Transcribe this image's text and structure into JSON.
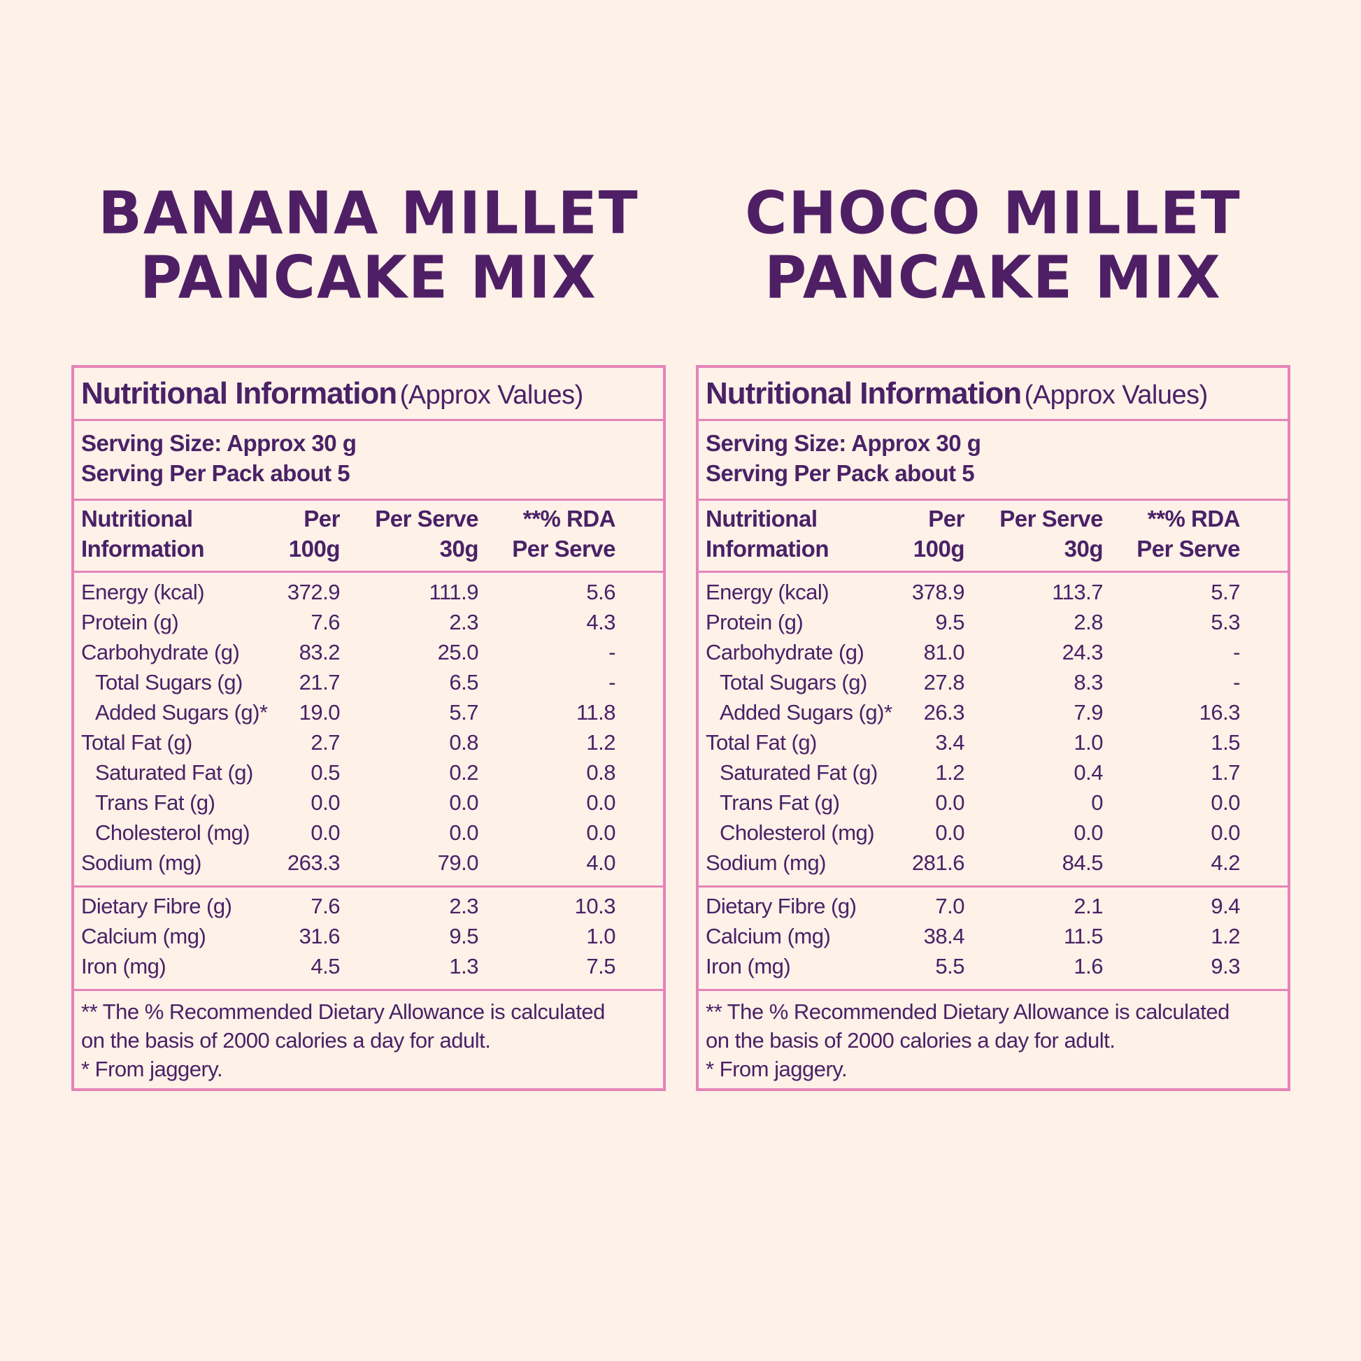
{
  "products": [
    {
      "title_line1": "BANANA MILLET",
      "title_line2": "PANCAKE MIX",
      "header_strong": "Nutritional Information",
      "header_light": "(Approx Values)",
      "serving_size": "Serving Size: Approx 30 g",
      "servings_per_pack": "Serving Per Pack about 5",
      "columns": {
        "name_line1": "Nutritional",
        "name_line2": "Information",
        "per100_line1": "Per",
        "per100_line2": "100g",
        "serve_line1": "Per Serve",
        "serve_line2": "30g",
        "rda_line1": "**% RDA",
        "rda_line2": "Per Serve"
      },
      "rows": [
        {
          "name": "Energy (kcal)",
          "per100": "372.9",
          "serve": "111.9",
          "rda": "5.6"
        },
        {
          "name": "Protein (g)",
          "per100": "7.6",
          "serve": "2.3",
          "rda": "4.3"
        },
        {
          "name": "Carbohydrate (g)",
          "per100": "83.2",
          "serve": "25.0",
          "rda": "-"
        },
        {
          "name": "Total Sugars (g)",
          "per100": "21.7",
          "serve": "6.5",
          "rda": "-"
        },
        {
          "name": "Added  Sugars (g)*",
          "per100": "19.0",
          "serve": "5.7",
          "rda": "11.8"
        },
        {
          "name": "Total Fat (g)",
          "per100": "2.7",
          "serve": "0.8",
          "rda": "1.2"
        },
        {
          "name": "Saturated Fat (g)",
          "per100": "0.5",
          "serve": "0.2",
          "rda": "0.8"
        },
        {
          "name": "Trans Fat (g)",
          "per100": "0.0",
          "serve": "0.0",
          "rda": "0.0"
        },
        {
          "name": "Cholesterol (mg)",
          "per100": "0.0",
          "serve": "0.0",
          "rda": "0.0"
        },
        {
          "name": "Sodium (mg)",
          "per100": "263.3",
          "serve": "79.0",
          "rda": "4.0"
        },
        {
          "name": "Dietary Fibre (g)",
          "per100": "7.6",
          "serve": "2.3",
          "rda": "10.3"
        },
        {
          "name": "Calcium (mg)",
          "per100": "31.6",
          "serve": "9.5",
          "rda": "1.0"
        },
        {
          "name": "Iron (mg)",
          "per100": "4.5",
          "serve": "1.3",
          "rda": "7.5"
        }
      ],
      "footnote_line1": "** The % Recommended Dietary Allowance is calculated",
      "footnote_line2": "on the basis of 2000 calories a day for adult.",
      "footnote_line3": "* From jaggery."
    },
    {
      "title_line1": "CHOCO MILLET",
      "title_line2": "PANCAKE MIX",
      "header_strong": "Nutritional Information",
      "header_light": "(Approx Values)",
      "serving_size": "Serving Size: Approx 30 g",
      "servings_per_pack": "Serving Per Pack about 5",
      "columns": {
        "name_line1": "Nutritional",
        "name_line2": "Information",
        "per100_line1": "Per",
        "per100_line2": "100g",
        "serve_line1": "Per Serve",
        "serve_line2": "30g",
        "rda_line1": "**% RDA",
        "rda_line2": "Per Serve"
      },
      "rows": [
        {
          "name": "Energy (kcal)",
          "per100": "378.9",
          "serve": "113.7",
          "rda": "5.7"
        },
        {
          "name": "Protein (g)",
          "per100": "9.5",
          "serve": "2.8",
          "rda": "5.3"
        },
        {
          "name": "Carbohydrate (g)",
          "per100": "81.0",
          "serve": "24.3",
          "rda": "-"
        },
        {
          "name": "Total Sugars (g)",
          "per100": "27.8",
          "serve": "8.3",
          "rda": "-"
        },
        {
          "name": "Added  Sugars (g)*",
          "per100": "26.3",
          "serve": "7.9",
          "rda": "16.3"
        },
        {
          "name": "Total Fat (g)",
          "per100": "3.4",
          "serve": "1.0",
          "rda": "1.5"
        },
        {
          "name": "Saturated Fat (g)",
          "per100": "1.2",
          "serve": "0.4",
          "rda": "1.7"
        },
        {
          "name": "Trans Fat (g)",
          "per100": "0.0",
          "serve": "0",
          "rda": "0.0"
        },
        {
          "name": "Cholesterol (mg)",
          "per100": "0.0",
          "serve": "0.0",
          "rda": "0.0"
        },
        {
          "name": "Sodium (mg)",
          "per100": "281.6",
          "serve": "84.5",
          "rda": "4.2"
        },
        {
          "name": "Dietary Fibre (g)",
          "per100": "7.0",
          "serve": "2.1",
          "rda": "9.4"
        },
        {
          "name": "Calcium (mg)",
          "per100": "38.4",
          "serve": "11.5",
          "rda": "1.2"
        },
        {
          "name": "Iron (mg)",
          "per100": "5.5",
          "serve": "1.6",
          "rda": "9.3"
        }
      ],
      "footnote_line1": "** The % Recommended Dietary Allowance is calculated",
      "footnote_line2": "on the basis of 2000 calories a day for adult.",
      "footnote_line3": "* From jaggery."
    }
  ]
}
